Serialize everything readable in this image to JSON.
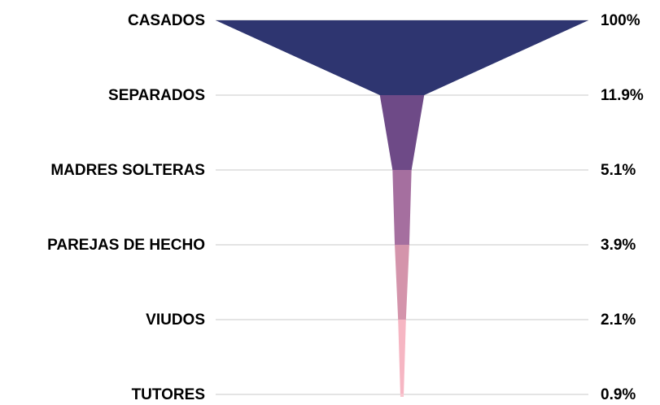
{
  "chart_data": {
    "type": "funnel",
    "categories": [
      "CASADOS",
      "SEPARADOS",
      "MADRES SOLTERAS",
      "PAREJAS DE HECHO",
      "VIUDOS",
      "TUTORES"
    ],
    "values": [
      100,
      11.9,
      5.1,
      3.9,
      2.1,
      0.9
    ],
    "value_labels": [
      "100%",
      "11.9%",
      "5.1%",
      "3.9%",
      "2.1%",
      "0.9%"
    ],
    "colors": [
      "#2e3570",
      "#6e4a87",
      "#a56f9f",
      "#d494ab",
      "#f6b6c3",
      "#f9c6cf"
    ]
  }
}
